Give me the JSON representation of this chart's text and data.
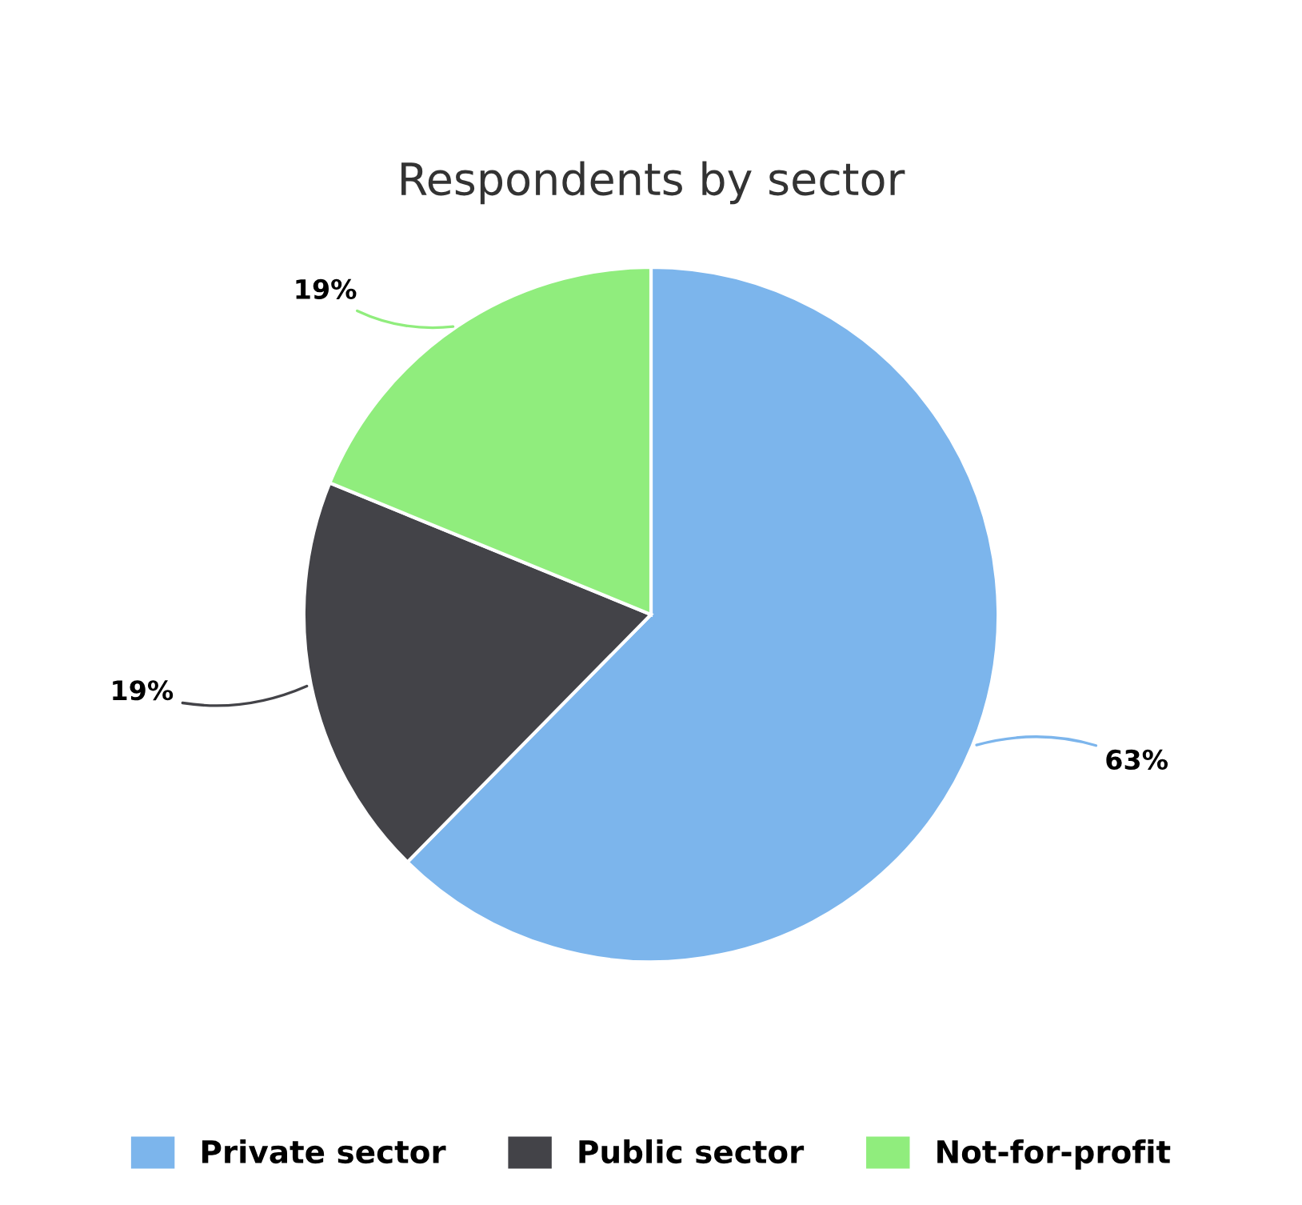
{
  "chart_data": {
    "type": "pie",
    "title": "Respondents by sector",
    "categories": [
      "Private sector",
      "Public sector",
      "Not-for-profit"
    ],
    "values": [
      63,
      19,
      19
    ],
    "colors": [
      "#7cb5ec",
      "#434348",
      "#90ed7d"
    ],
    "value_labels": [
      "63%",
      "19%",
      "19%"
    ],
    "legend": "bottom"
  }
}
